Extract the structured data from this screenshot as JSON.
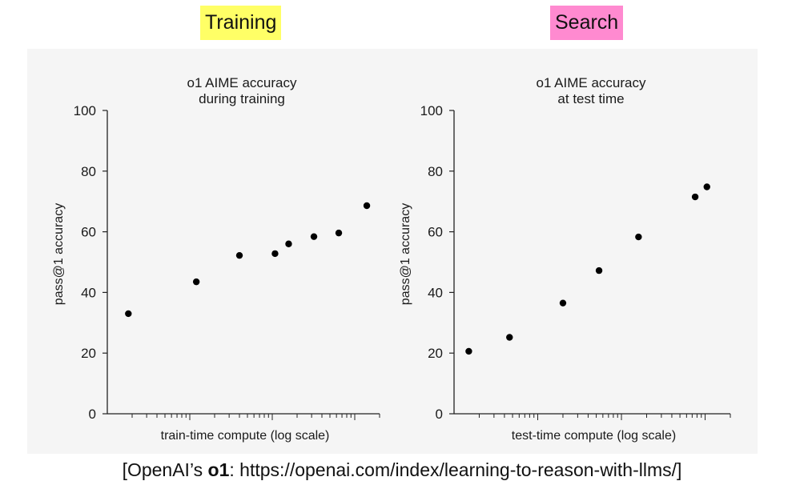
{
  "tags": {
    "left": {
      "label": "Training",
      "color": "#ffff66"
    },
    "right": {
      "label": "Search",
      "color": "#ff8ad0"
    }
  },
  "source": {
    "prefix": "[OpenAI’s ",
    "bold": "o1",
    "suffix": ": https://openai.com/index/learning-to-reason-with-llms/]"
  },
  "colors": {
    "panel": "#f5f5f5",
    "point": "#000000",
    "axis": "#222222"
  },
  "chart_data": [
    {
      "type": "scatter",
      "title": [
        "o1 AIME accuracy",
        "during training"
      ],
      "xlabel": "train-time compute (log scale)",
      "ylabel": "pass@1 accuracy",
      "ylim": [
        0,
        100
      ],
      "yticks": [
        0,
        20,
        40,
        60,
        80,
        100
      ],
      "x_scale": "log",
      "points": [
        {
          "x": 1.8,
          "y": 33
        },
        {
          "x": 12,
          "y": 43.5
        },
        {
          "x": 40,
          "y": 52.2
        },
        {
          "x": 108,
          "y": 52.8
        },
        {
          "x": 158,
          "y": 56
        },
        {
          "x": 320,
          "y": 58.4
        },
        {
          "x": 640,
          "y": 59.6
        },
        {
          "x": 1400,
          "y": 68.6
        }
      ]
    },
    {
      "type": "scatter",
      "title": [
        "o1 AIME accuracy",
        "at test time"
      ],
      "xlabel": "test-time compute (log scale)",
      "ylabel": "pass@1 accuracy",
      "ylim": [
        0,
        100
      ],
      "yticks": [
        0,
        20,
        40,
        60,
        80,
        100
      ],
      "x_scale": "log",
      "points": [
        {
          "x": 1.5,
          "y": 20.6
        },
        {
          "x": 4.6,
          "y": 25.2
        },
        {
          "x": 20,
          "y": 36.5
        },
        {
          "x": 54,
          "y": 47.2
        },
        {
          "x": 160,
          "y": 58.3
        },
        {
          "x": 760,
          "y": 71.5
        },
        {
          "x": 1050,
          "y": 74.8
        }
      ]
    }
  ]
}
